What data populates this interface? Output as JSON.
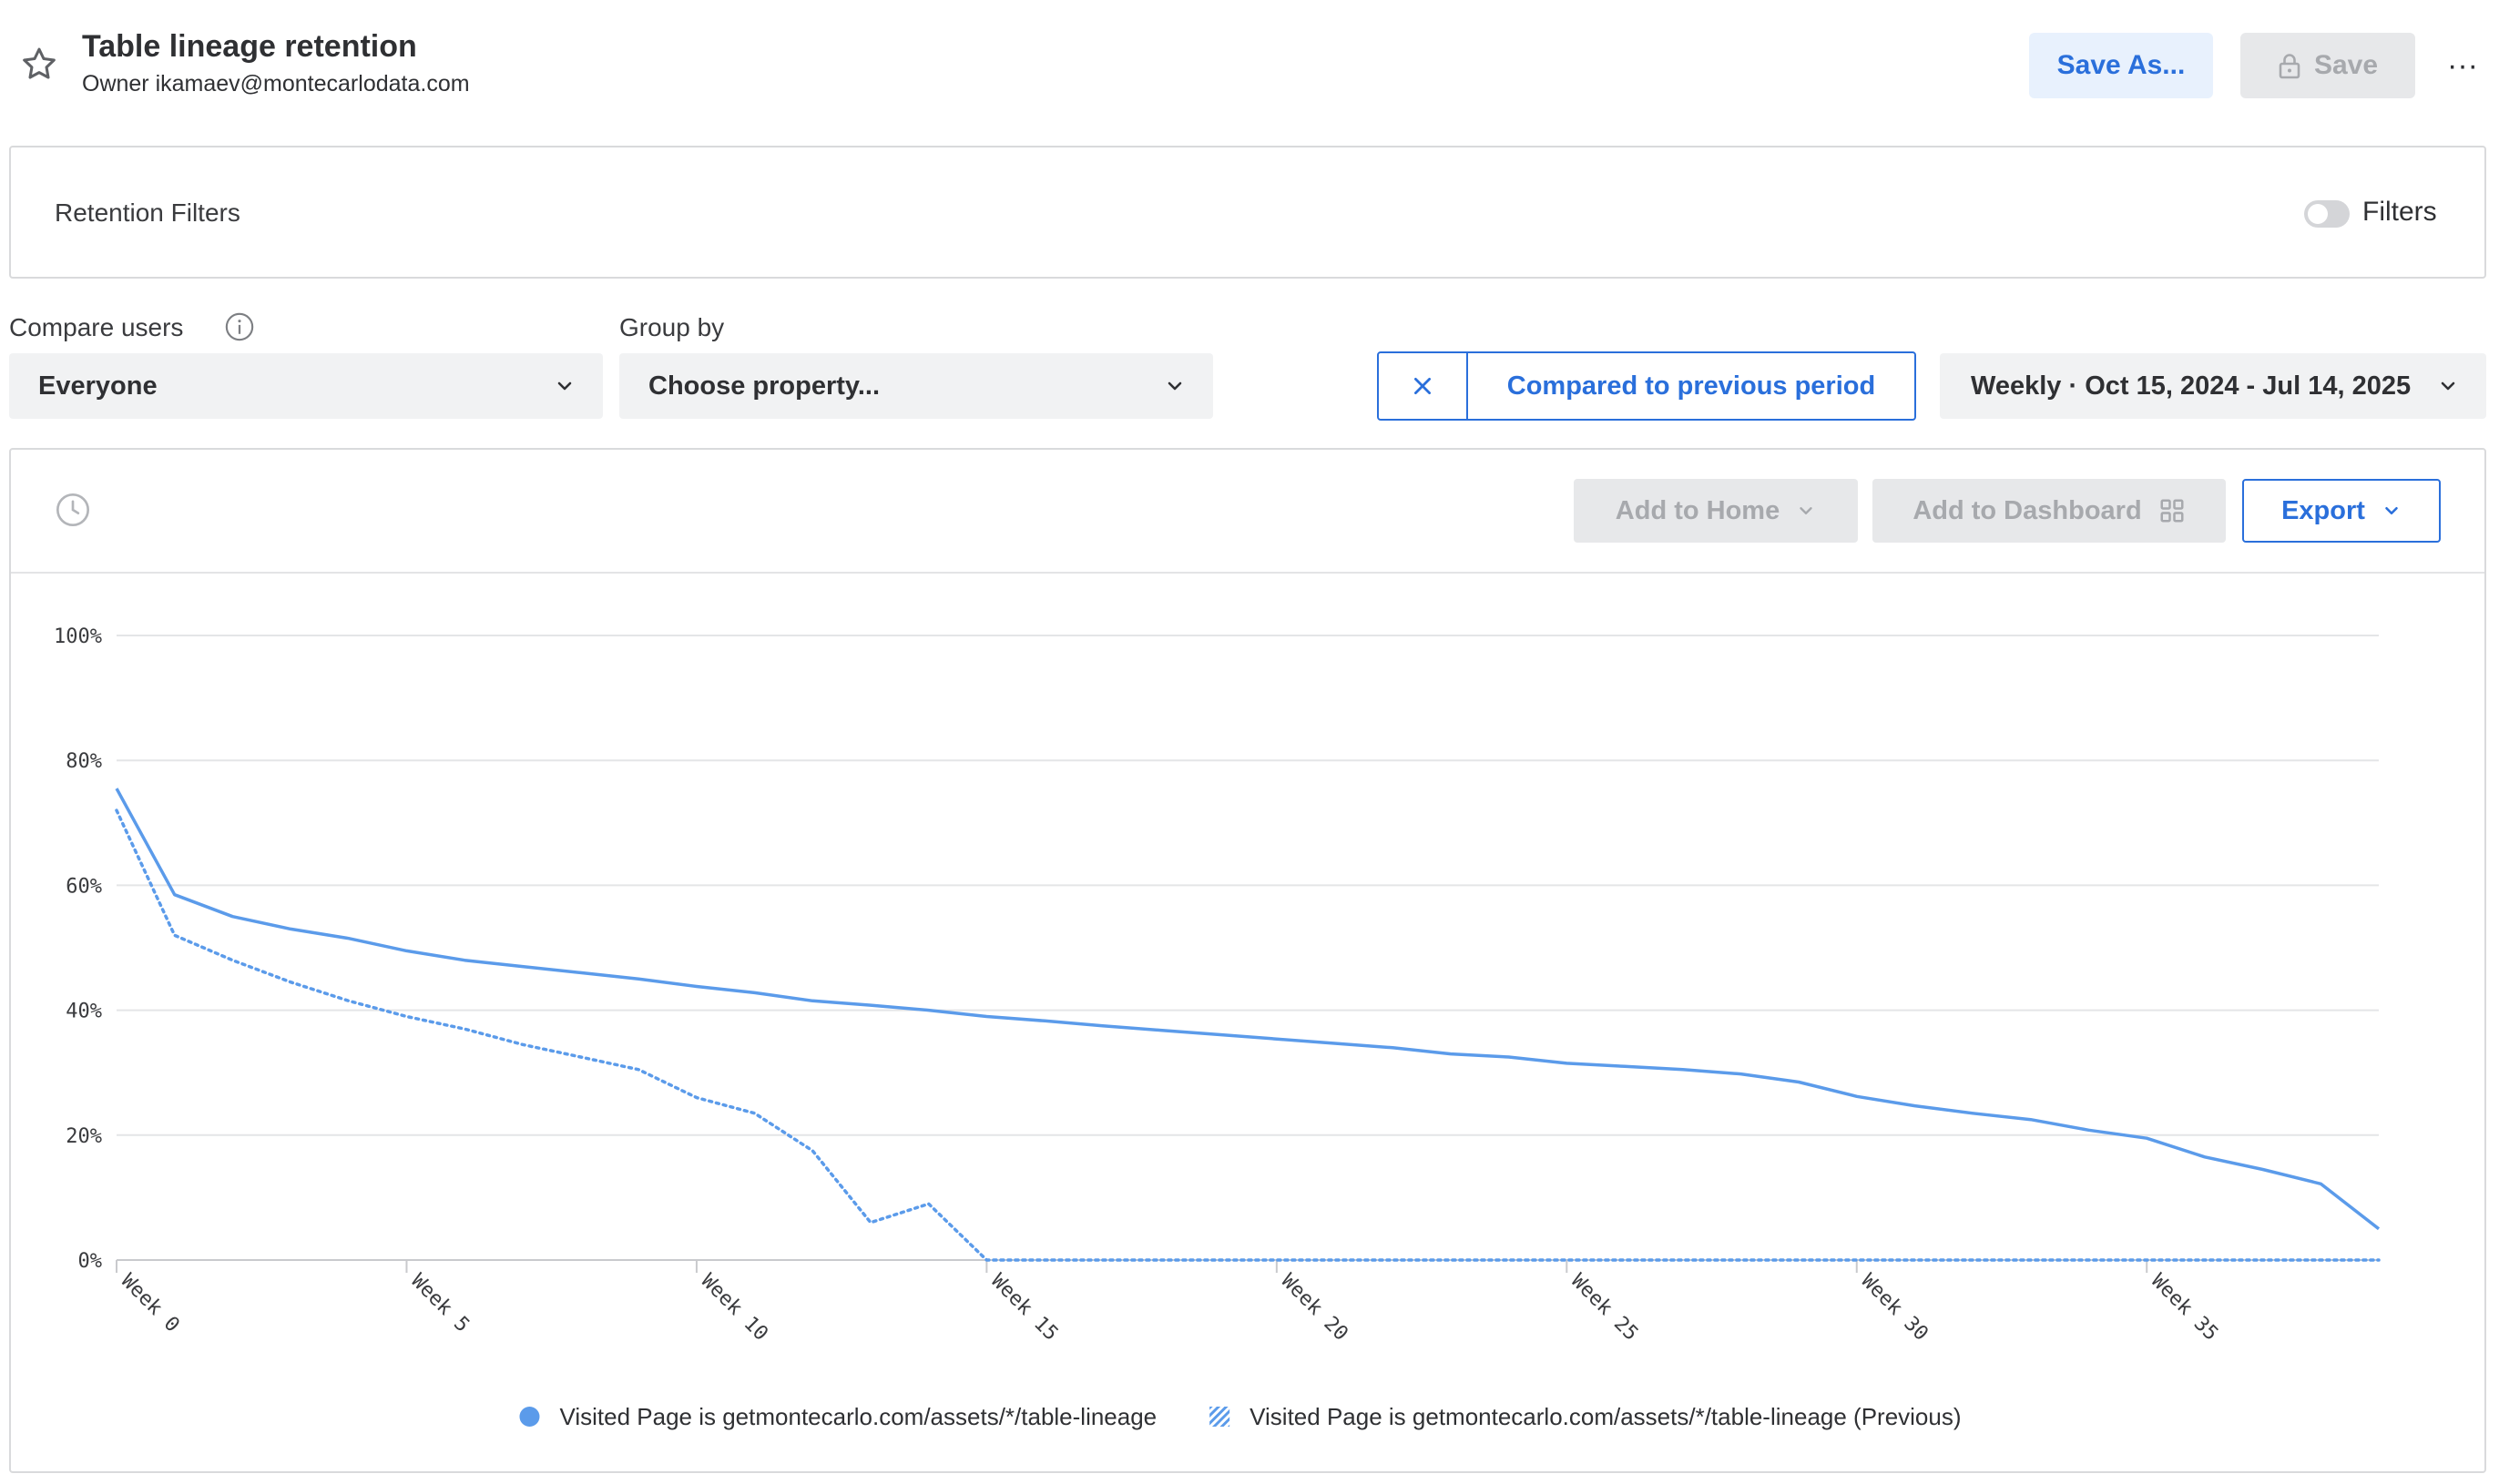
{
  "header": {
    "title": "Table lineage retention",
    "owner": "Owner ikamaev@montecarlodata.com",
    "save_as_label": "Save As...",
    "save_label": "Save",
    "more_label": "···"
  },
  "filters": {
    "title": "Retention Filters",
    "toggle_label": "Filters",
    "toggle_on": false
  },
  "controls": {
    "compare_users_label": "Compare users",
    "compare_users_value": "Everyone",
    "group_by_label": "Group by",
    "group_by_value": "Choose property...",
    "compare_period_label": "Compared to previous period",
    "date_range_label": "Weekly · Oct 15, 2024 - Jul 14, 2025"
  },
  "toolbar": {
    "add_home_label": "Add to Home",
    "add_dashboard_label": "Add to Dashboard",
    "export_label": "Export"
  },
  "colors": {
    "accent": "#2a6fdb",
    "series_line": "#5b9bea"
  },
  "chart_data": {
    "type": "line",
    "x_tick_labels": [
      "Week 0",
      "Week 5",
      "Week 10",
      "Week 15",
      "Week 20",
      "Week 25",
      "Week 30",
      "Week 35"
    ],
    "y_tick_labels": [
      "0%",
      "20%",
      "40%",
      "60%",
      "80%",
      "100%"
    ],
    "ylim": [
      0,
      100
    ],
    "xlim": [
      0,
      39
    ],
    "grid": true,
    "legend_position": "bottom",
    "series": [
      {
        "name": "Visited Page is getmontecarlo.com/assets/*/table-lineage",
        "style": "solid",
        "x": [
          0,
          1,
          2,
          3,
          4,
          5,
          6,
          7,
          8,
          9,
          10,
          11,
          12,
          13,
          14,
          15,
          16,
          17,
          18,
          19,
          20,
          21,
          22,
          23,
          24,
          25,
          26,
          27,
          28,
          29,
          30,
          31,
          32,
          33,
          34,
          35,
          36,
          37,
          38,
          39
        ],
        "values": [
          75.5,
          58.5,
          55,
          53,
          51.5,
          49.5,
          48,
          47,
          46,
          45,
          43.8,
          42.8,
          41.5,
          40.8,
          40,
          39,
          38.3,
          37.5,
          36.8,
          36.1,
          35.4,
          34.7,
          34,
          33,
          32.5,
          31.5,
          31,
          30.5,
          29.8,
          28.5,
          26.2,
          24.7,
          23.5,
          22.5,
          20.8,
          19.5,
          16.5,
          14.5,
          12.2,
          5
        ]
      },
      {
        "name": "Visited Page is getmontecarlo.com/assets/*/table-lineage (Previous)",
        "style": "dotted",
        "x": [
          0,
          1,
          2,
          3,
          4,
          5,
          6,
          7,
          8,
          9,
          10,
          11,
          12,
          13,
          14,
          15,
          16,
          17,
          18,
          19,
          20,
          21,
          22,
          23,
          24,
          25,
          26,
          27,
          28,
          29,
          30,
          31,
          32,
          33,
          34,
          35,
          36,
          37,
          38,
          39
        ],
        "values": [
          72,
          52,
          48,
          44.5,
          41.5,
          39,
          37,
          34.5,
          32.5,
          30.5,
          26,
          23.5,
          17.5,
          6,
          9,
          0,
          0,
          0,
          0,
          0,
          0,
          0,
          0,
          0,
          0,
          0,
          0,
          0,
          0,
          0,
          0,
          0,
          0,
          0,
          0,
          0,
          0,
          0,
          0,
          0
        ]
      }
    ]
  }
}
